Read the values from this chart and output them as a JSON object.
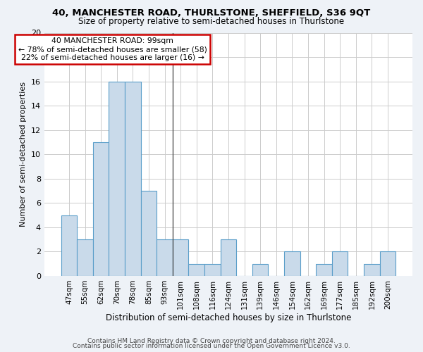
{
  "title": "40, MANCHESTER ROAD, THURLSTONE, SHEFFIELD, S36 9QT",
  "subtitle": "Size of property relative to semi-detached houses in Thurlstone",
  "xlabel": "Distribution of semi-detached houses by size in Thurlstone",
  "ylabel": "Number of semi-detached properties",
  "categories": [
    "47sqm",
    "55sqm",
    "62sqm",
    "70sqm",
    "78sqm",
    "85sqm",
    "93sqm",
    "101sqm",
    "108sqm",
    "116sqm",
    "124sqm",
    "131sqm",
    "139sqm",
    "146sqm",
    "154sqm",
    "162sqm",
    "169sqm",
    "177sqm",
    "185sqm",
    "192sqm",
    "200sqm"
  ],
  "values": [
    5,
    3,
    11,
    16,
    16,
    7,
    3,
    3,
    1,
    1,
    3,
    0,
    1,
    0,
    2,
    0,
    1,
    2,
    0,
    1,
    2
  ],
  "bar_color": "#c9daea",
  "bar_edge_color": "#5a9ec9",
  "property_bin_index": 6.5,
  "annotation_title": "40 MANCHESTER ROAD: 99sqm",
  "annotation_line1": "← 78% of semi-detached houses are smaller (58)",
  "annotation_line2": "22% of semi-detached houses are larger (16) →",
  "annotation_box_color": "#ffffff",
  "annotation_box_edge_color": "#cc0000",
  "vline_color": "#555555",
  "ylim": [
    0,
    20
  ],
  "yticks": [
    0,
    2,
    4,
    6,
    8,
    10,
    12,
    14,
    16,
    18,
    20
  ],
  "footer1": "Contains HM Land Registry data © Crown copyright and database right 2024.",
  "footer2": "Contains public sector information licensed under the Open Government Licence v3.0.",
  "bg_color": "#eef2f7",
  "plot_bg_color": "#ffffff",
  "grid_color": "#cccccc",
  "title_fontsize": 9.5,
  "subtitle_fontsize": 8.5,
  "ylabel_fontsize": 8,
  "xlabel_fontsize": 8.5,
  "tick_fontsize": 7.5,
  "ytick_fontsize": 8,
  "footer_fontsize": 6.5,
  "ann_fontsize": 7.8
}
